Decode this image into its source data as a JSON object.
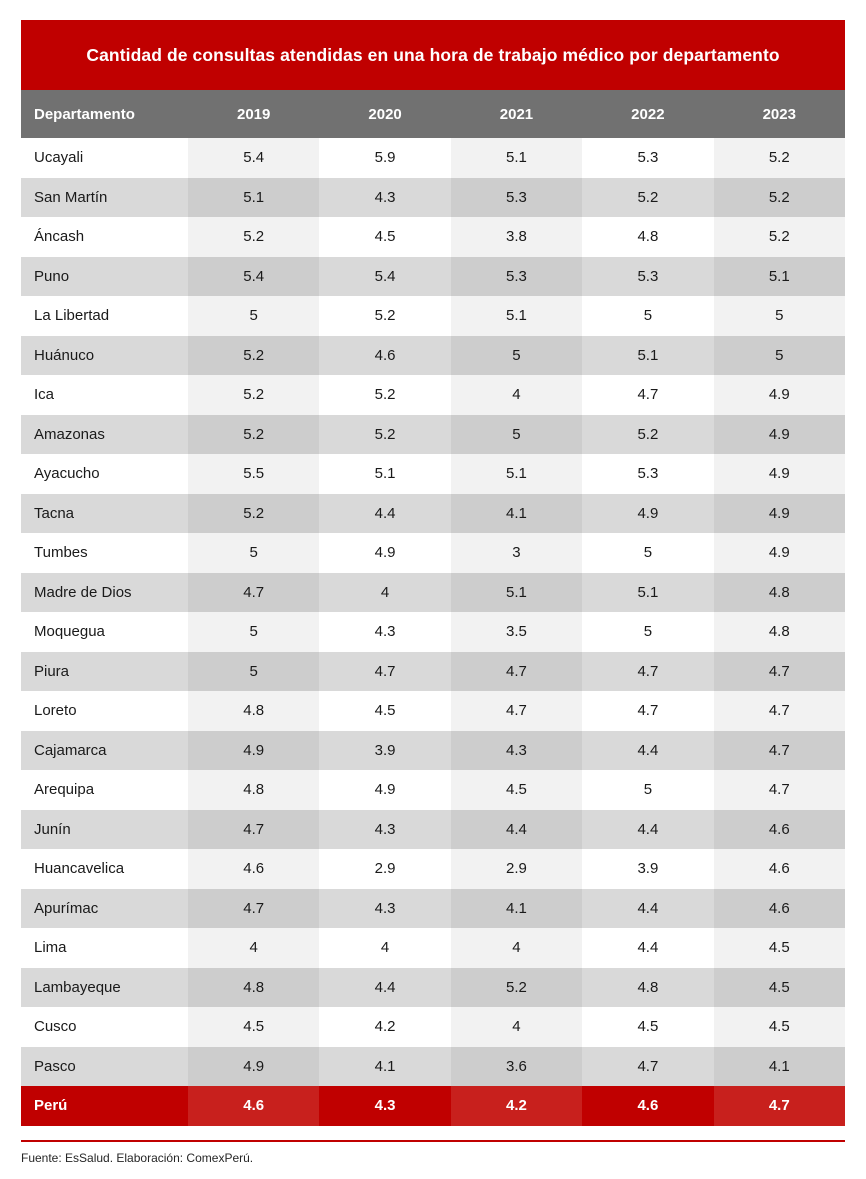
{
  "title": "Cantidad de consultas atendidas en una hora de trabajo médico por departamento",
  "chart_data": {
    "type": "table",
    "title": "Cantidad de consultas atendidas en una hora de trabajo médico por departamento",
    "columns": [
      "Departamento",
      "2019",
      "2020",
      "2021",
      "2022",
      "2023"
    ],
    "banded_year_columns": [
      "2019",
      "2021",
      "2023"
    ],
    "rows": [
      {
        "name": "Ucayali",
        "values": [
          "5.4",
          "5.9",
          "5.1",
          "5.3",
          "5.2"
        ]
      },
      {
        "name": "San Martín",
        "values": [
          "5.1",
          "4.3",
          "5.3",
          "5.2",
          "5.2"
        ]
      },
      {
        "name": "Áncash",
        "values": [
          "5.2",
          "4.5",
          "3.8",
          "4.8",
          "5.2"
        ]
      },
      {
        "name": "Puno",
        "values": [
          "5.4",
          "5.4",
          "5.3",
          "5.3",
          "5.1"
        ]
      },
      {
        "name": "La Libertad",
        "values": [
          "5",
          "5.2",
          "5.1",
          "5",
          "5"
        ]
      },
      {
        "name": "Huánuco",
        "values": [
          "5.2",
          "4.6",
          "5",
          "5.1",
          "5"
        ]
      },
      {
        "name": "Ica",
        "values": [
          "5.2",
          "5.2",
          "4",
          "4.7",
          "4.9"
        ]
      },
      {
        "name": "Amazonas",
        "values": [
          "5.2",
          "5.2",
          "5",
          "5.2",
          "4.9"
        ]
      },
      {
        "name": "Ayacucho",
        "values": [
          "5.5",
          "5.1",
          "5.1",
          "5.3",
          "4.9"
        ]
      },
      {
        "name": "Tacna",
        "values": [
          "5.2",
          "4.4",
          "4.1",
          "4.9",
          "4.9"
        ]
      },
      {
        "name": "Tumbes",
        "values": [
          "5",
          "4.9",
          "3",
          "5",
          "4.9"
        ]
      },
      {
        "name": "Madre de Dios",
        "values": [
          "4.7",
          "4",
          "5.1",
          "5.1",
          "4.8"
        ]
      },
      {
        "name": "Moquegua",
        "values": [
          "5",
          "4.3",
          "3.5",
          "5",
          "4.8"
        ]
      },
      {
        "name": "Piura",
        "values": [
          "5",
          "4.7",
          "4.7",
          "4.7",
          "4.7"
        ]
      },
      {
        "name": "Loreto",
        "values": [
          "4.8",
          "4.5",
          "4.7",
          "4.7",
          "4.7"
        ]
      },
      {
        "name": "Cajamarca",
        "values": [
          "4.9",
          "3.9",
          "4.3",
          "4.4",
          "4.7"
        ]
      },
      {
        "name": "Arequipa",
        "values": [
          "4.8",
          "4.9",
          "4.5",
          "5",
          "4.7"
        ]
      },
      {
        "name": "Junín",
        "values": [
          "4.7",
          "4.3",
          "4.4",
          "4.4",
          "4.6"
        ]
      },
      {
        "name": "Huancavelica",
        "values": [
          "4.6",
          "2.9",
          "2.9",
          "3.9",
          "4.6"
        ]
      },
      {
        "name": "Apurímac",
        "values": [
          "4.7",
          "4.3",
          "4.1",
          "4.4",
          "4.6"
        ]
      },
      {
        "name": "Lima",
        "values": [
          "4",
          "4",
          "4",
          "4.4",
          "4.5"
        ]
      },
      {
        "name": "Lambayeque",
        "values": [
          "4.8",
          "4.4",
          "5.2",
          "4.8",
          "4.5"
        ]
      },
      {
        "name": "Cusco",
        "values": [
          "4.5",
          "4.2",
          "4",
          "4.5",
          "4.5"
        ]
      },
      {
        "name": "Pasco",
        "values": [
          "4.9",
          "4.1",
          "3.6",
          "4.7",
          "4.1"
        ]
      }
    ],
    "total": {
      "name": "Perú",
      "values": [
        "4.6",
        "4.3",
        "4.2",
        "4.6",
        "4.7"
      ]
    }
  },
  "footer": {
    "source": "Fuente: EsSalud. Elaboración: ComexPerú."
  },
  "colors": {
    "accent_red": "#c00000",
    "header_gray": "#717171",
    "row_alt_gray": "#d9d9d9",
    "band_on_white": "#f2f2f2",
    "band_on_gray": "#cdcdcd",
    "band_on_red": "#c8201d"
  }
}
